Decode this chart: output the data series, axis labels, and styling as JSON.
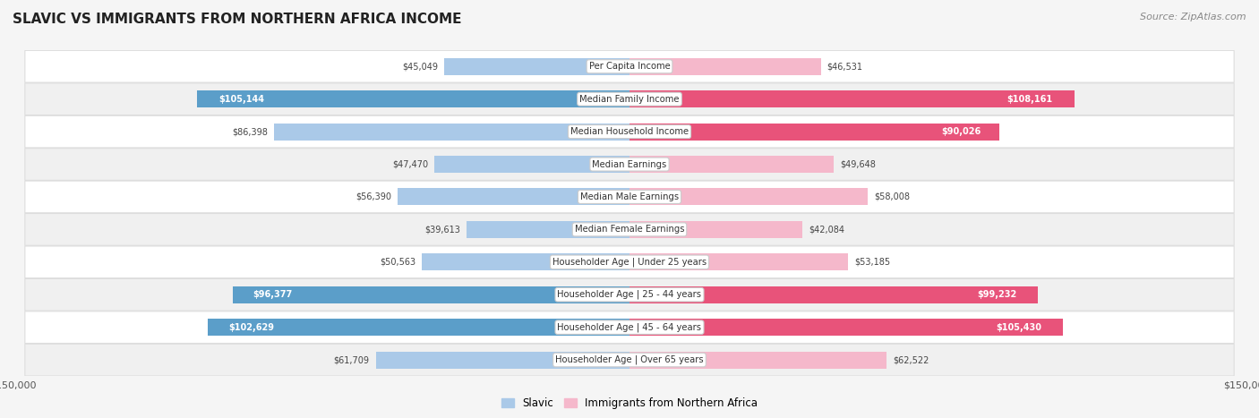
{
  "title": "Slavic vs Immigrants from Northern Africa Income",
  "source": "Source: ZipAtlas.com",
  "categories": [
    "Per Capita Income",
    "Median Family Income",
    "Median Household Income",
    "Median Earnings",
    "Median Male Earnings",
    "Median Female Earnings",
    "Householder Age | Under 25 years",
    "Householder Age | 25 - 44 years",
    "Householder Age | 45 - 64 years",
    "Householder Age | Over 65 years"
  ],
  "slavic_values": [
    45049,
    105144,
    86398,
    47470,
    56390,
    39613,
    50563,
    96377,
    102629,
    61709
  ],
  "immigrant_values": [
    46531,
    108161,
    90026,
    49648,
    58008,
    42084,
    53185,
    99232,
    105430,
    62522
  ],
  "slavic_labels": [
    "$45,049",
    "$105,144",
    "$86,398",
    "$47,470",
    "$56,390",
    "$39,613",
    "$50,563",
    "$96,377",
    "$102,629",
    "$61,709"
  ],
  "immigrant_labels": [
    "$46,531",
    "$108,161",
    "$90,026",
    "$49,648",
    "$58,008",
    "$42,084",
    "$53,185",
    "$99,232",
    "$105,430",
    "$62,522"
  ],
  "slavic_color_light": "#aac9e8",
  "slavic_color_dark": "#5b9ec9",
  "immigrant_color_light": "#f5b8cb",
  "immigrant_color_dark": "#e8537a",
  "slavic_dark_indices": [
    1,
    7,
    8
  ],
  "immigrant_dark_indices": [
    1,
    2,
    7,
    8
  ],
  "max_value": 150000,
  "bar_height": 0.52,
  "legend_slavic": "Slavic",
  "legend_immigrant": "Immigrants from Northern Africa"
}
